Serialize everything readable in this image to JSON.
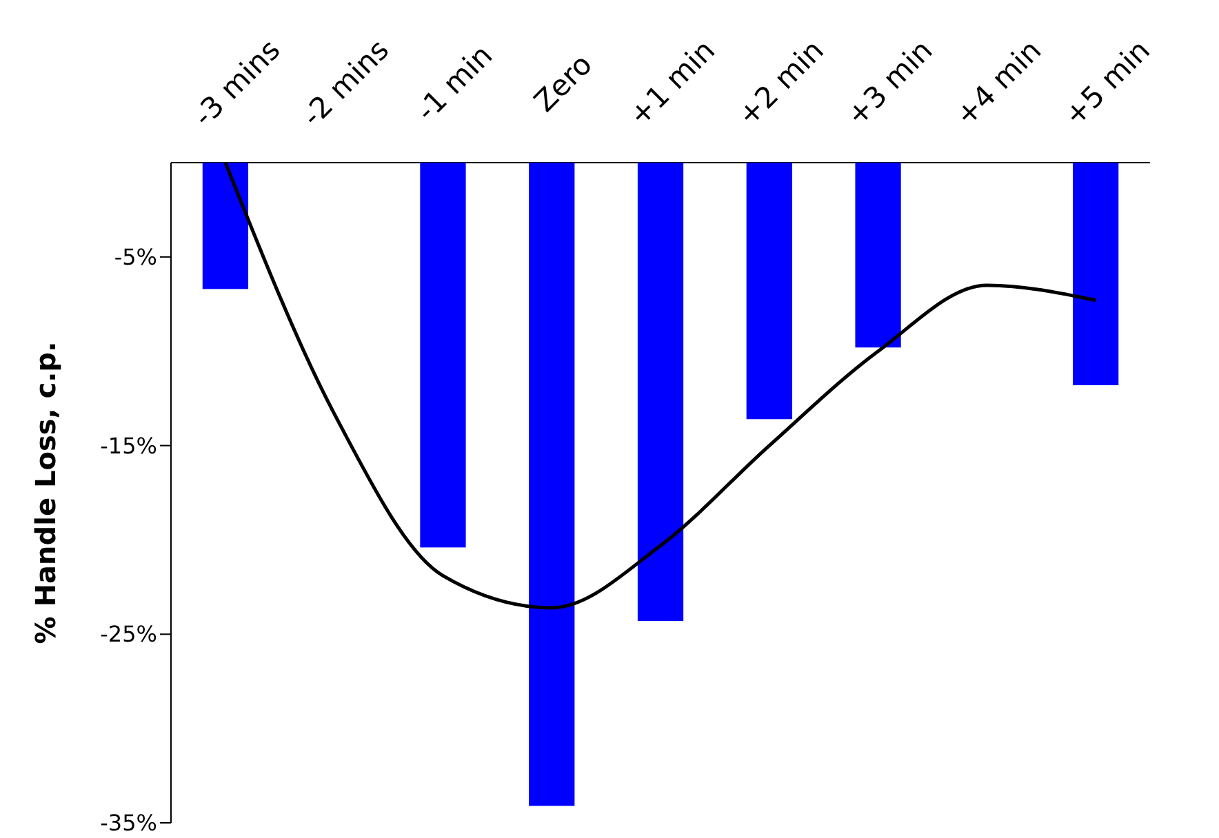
{
  "chart_data": {
    "type": "bar",
    "ylabel": "% Handle Loss, c.p.",
    "categories": [
      "-3 mins",
      "-2 mins",
      "-1 min",
      "Zero",
      "+1 min",
      "+2 min",
      "+3 min",
      "+4 min",
      "+5 min"
    ],
    "series": [
      {
        "color": "#0000ff",
        "values": [
          -6.7,
          null,
          -20.4,
          -34.1,
          -24.3,
          -13.6,
          -9.8,
          null,
          -11.8
        ]
      },
      {
        "type": "line",
        "color": "#000000",
        "marker": "none",
        "values": [
          0,
          -13.3,
          -21.9,
          -23.6,
          -20.3,
          -15.0,
          -10.0,
          -6.5,
          -7.3
        ]
      }
    ],
    "ylim": [
      -35,
      0
    ],
    "yticks": [
      {
        "value": -5,
        "label": "-5%"
      },
      {
        "value": -15,
        "label": "-15%"
      },
      {
        "value": -25,
        "label": "-25%"
      },
      {
        "value": -35,
        "label": "-35%"
      }
    ],
    "grid": false
  }
}
